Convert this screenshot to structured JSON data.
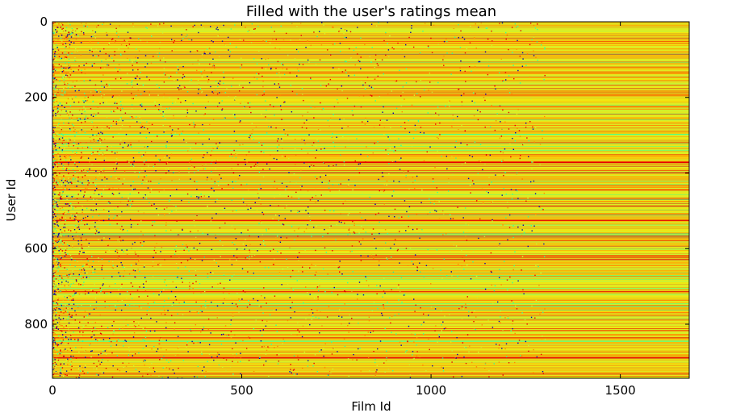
{
  "chart_data": {
    "type": "heatmap",
    "title": "Filled with the user's ratings mean",
    "xlabel": "Film Id",
    "ylabel": "User Id",
    "xlim": [
      0,
      1682
    ],
    "ylim": [
      943,
      0
    ],
    "x_ticks": [
      0,
      500,
      1000,
      1500
    ],
    "y_ticks": [
      0,
      200,
      400,
      600,
      800
    ],
    "grid": false,
    "legend": "none",
    "colormap": [
      "#0000aa",
      "#00aaff",
      "#33ff99",
      "#ccf233",
      "#f2e611",
      "#ff8800",
      "#e60000"
    ],
    "value_scale": [
      1,
      5
    ],
    "rows": 943,
    "columns": 1682
  }
}
